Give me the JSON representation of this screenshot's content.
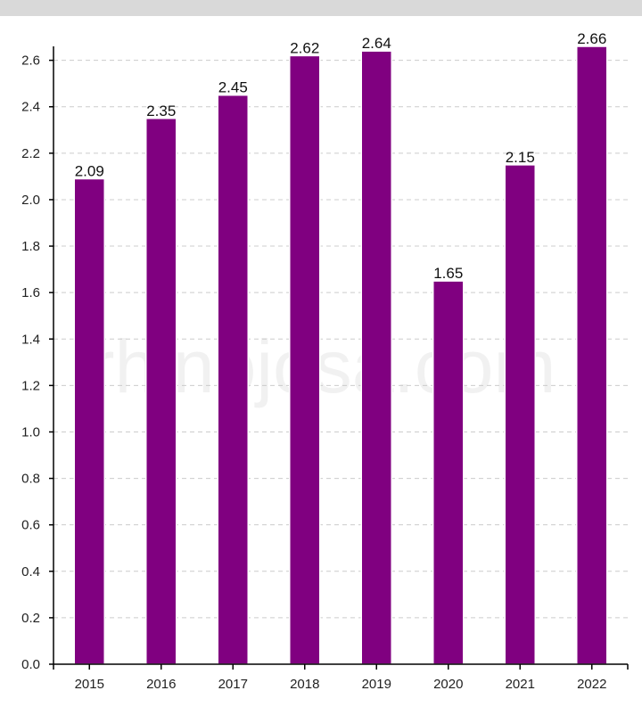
{
  "watermark": "rhinojosa.com",
  "chart_data": {
    "type": "bar",
    "categories": [
      "2015",
      "2016",
      "2017",
      "2018",
      "2019",
      "2020",
      "2021",
      "2022"
    ],
    "values": [
      2.09,
      2.35,
      2.45,
      2.62,
      2.64,
      1.65,
      2.15,
      2.66
    ],
    "data_labels": [
      "2.09",
      "2.35",
      "2.45",
      "2.62",
      "2.64",
      "1.65",
      "2.15",
      "2.66"
    ],
    "yticks": [
      "0.0",
      "0.2",
      "0.4",
      "0.6",
      "0.8",
      "1.0",
      "1.2",
      "1.4",
      "1.6",
      "1.8",
      "2.0",
      "2.2",
      "2.4",
      "2.6"
    ],
    "ylim": [
      0,
      2.66
    ],
    "title": "",
    "xlabel": "",
    "ylabel": "",
    "grid": "horizontal dashed",
    "bar_color": "#800080",
    "grid_color": "#cccccc",
    "axis_color": "#000000"
  }
}
